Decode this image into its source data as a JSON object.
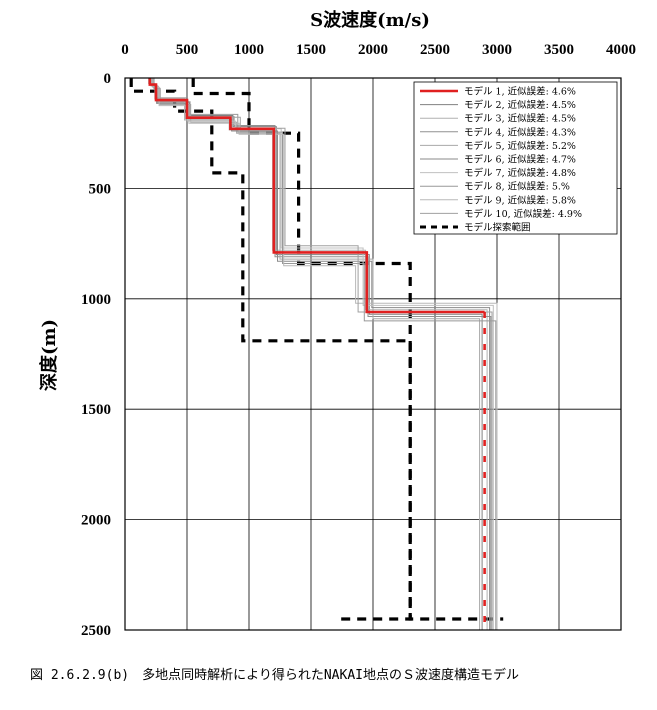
{
  "chart_data": {
    "type": "line",
    "title": "S波速度(m/s)",
    "xlabel": "S波速度(m/s)",
    "ylabel": "深度(m)",
    "xlim": [
      0,
      4000
    ],
    "ylim": [
      0,
      2500
    ],
    "y_inverted": true,
    "x_axis_position": "top",
    "grid": true,
    "legend_position": "top-right",
    "x_ticks": [
      "0",
      "500",
      "1000",
      "1500",
      "2000",
      "2500",
      "3000",
      "3500",
      "4000"
    ],
    "y_ticks": [
      "0",
      "500",
      "1000",
      "1500",
      "2000",
      "2500"
    ],
    "series": [
      {
        "name": "モデル 1, 近似誤差: 4.6%",
        "color": "#e02020",
        "velocity": [
          200,
          250,
          500,
          850,
          1200,
          1950,
          2900
        ],
        "boundaries": [
          30,
          100,
          180,
          230,
          790,
          1060
        ]
      },
      {
        "name": "モデル 2, 近似誤差: 4.5%",
        "color": "#808080",
        "velocity": [
          210,
          260,
          520,
          870,
          1220,
          1970,
          2880
        ],
        "boundaries": [
          35,
          110,
          170,
          220,
          800,
          1070
        ]
      },
      {
        "name": "モデル 3, 近似誤差: 4.5%",
        "color": "#b0b0b0",
        "velocity": [
          190,
          240,
          480,
          840,
          1190,
          1940,
          2920
        ],
        "boundaries": [
          25,
          95,
          190,
          235,
          780,
          1050
        ]
      },
      {
        "name": "モデル 4, 近似誤差: 4.3%",
        "color": "#909090",
        "velocity": [
          220,
          270,
          510,
          880,
          1210,
          1960,
          2950
        ],
        "boundaries": [
          40,
          105,
          175,
          215,
          810,
          1080
        ]
      },
      {
        "name": "モデル 5, 近似誤差: 5.2%",
        "color": "#a8a8a8",
        "velocity": [
          230,
          280,
          530,
          900,
          1250,
          2000,
          2860
        ],
        "boundaries": [
          45,
          120,
          200,
          250,
          820,
          1090
        ]
      },
      {
        "name": "モデル 6, 近似誤差: 4.7%",
        "color": "#8a8a8a",
        "velocity": [
          205,
          255,
          490,
          860,
          1230,
          1990,
          2940
        ],
        "boundaries": [
          30,
          115,
          185,
          240,
          830,
          1040
        ]
      },
      {
        "name": "モデル 7, 近似誤差: 4.8%",
        "color": "#c0c0c0",
        "velocity": [
          215,
          265,
          505,
          890,
          1260,
          1920,
          2970
        ],
        "boundaries": [
          35,
          100,
          195,
          230,
          770,
          1030
        ]
      },
      {
        "name": "モデル 8, 近似誤差: 5.%",
        "color": "#989898",
        "velocity": [
          195,
          245,
          495,
          910,
          1270,
          1930,
          2990
        ],
        "boundaries": [
          28,
          90,
          165,
          245,
          840,
          1100
        ]
      },
      {
        "name": "モデル 9, 近似誤差: 5.8%",
        "color": "#b8b8b8",
        "velocity": [
          225,
          275,
          515,
          920,
          1280,
          1860,
          3000
        ],
        "boundaries": [
          42,
          125,
          205,
          255,
          850,
          1020
        ]
      },
      {
        "name": "モデル 10, 近似誤差: 4.9%",
        "color": "#a0a0a0",
        "velocity": [
          235,
          285,
          525,
          930,
          1290,
          1880,
          2960
        ],
        "boundaries": [
          48,
          108,
          178,
          228,
          760,
          1060
        ]
      },
      {
        "name": "モデル探索範囲",
        "color": "#000000",
        "style": "dashed",
        "lower_velocity": [
          50,
          400,
          700,
          950,
          2300,
          1700
        ],
        "lower_boundaries": [
          60,
          150,
          430,
          1190,
          2450
        ],
        "upper_velocity": [
          550,
          1000,
          1400,
          2300,
          3050
        ],
        "upper_boundaries": [
          70,
          250,
          840,
          2450
        ]
      }
    ]
  },
  "caption": "図 2.6.2.9(b)　多地点同時解析により得られたNAKAI地点のＳ波速度構造モデル"
}
